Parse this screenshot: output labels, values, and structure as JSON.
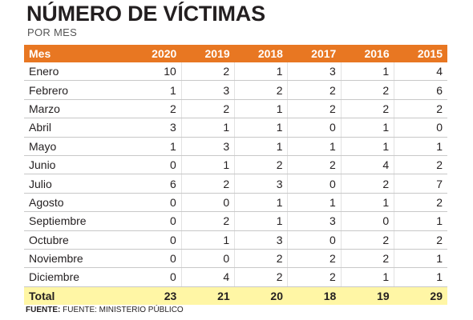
{
  "title": "NÚMERO DE VÍCTIMAS",
  "subtitle": "POR MES",
  "source_label": "FUENTE:",
  "source_text": "FUENTE: MINISTERIO PÚBLICO",
  "colors": {
    "header_bg": "#e87722",
    "total_bg": "#fff6a5"
  },
  "chart_data": {
    "type": "table",
    "row_header_label": "Mes",
    "columns": [
      "2020",
      "2019",
      "2018",
      "2017",
      "2016",
      "2015"
    ],
    "rows": [
      {
        "label": "Enero",
        "values": [
          10,
          2,
          1,
          3,
          1,
          4
        ]
      },
      {
        "label": "Febrero",
        "values": [
          1,
          3,
          2,
          2,
          2,
          6
        ]
      },
      {
        "label": "Marzo",
        "values": [
          2,
          2,
          1,
          2,
          2,
          2
        ]
      },
      {
        "label": "Abril",
        "values": [
          3,
          1,
          1,
          0,
          1,
          0
        ]
      },
      {
        "label": "Mayo",
        "values": [
          1,
          3,
          1,
          1,
          1,
          1
        ]
      },
      {
        "label": "Junio",
        "values": [
          0,
          1,
          2,
          2,
          4,
          2
        ]
      },
      {
        "label": "Julio",
        "values": [
          6,
          2,
          3,
          0,
          2,
          7
        ]
      },
      {
        "label": "Agosto",
        "values": [
          0,
          0,
          1,
          1,
          1,
          2
        ]
      },
      {
        "label": "Septiembre",
        "values": [
          0,
          2,
          1,
          3,
          0,
          1
        ]
      },
      {
        "label": "Octubre",
        "values": [
          0,
          1,
          3,
          0,
          2,
          2
        ]
      },
      {
        "label": "Noviembre",
        "values": [
          0,
          0,
          2,
          2,
          2,
          1
        ]
      },
      {
        "label": "Diciembre",
        "values": [
          0,
          4,
          2,
          2,
          1,
          1
        ]
      }
    ],
    "total": {
      "label": "Total",
      "values": [
        23,
        21,
        20,
        18,
        19,
        29
      ]
    }
  }
}
